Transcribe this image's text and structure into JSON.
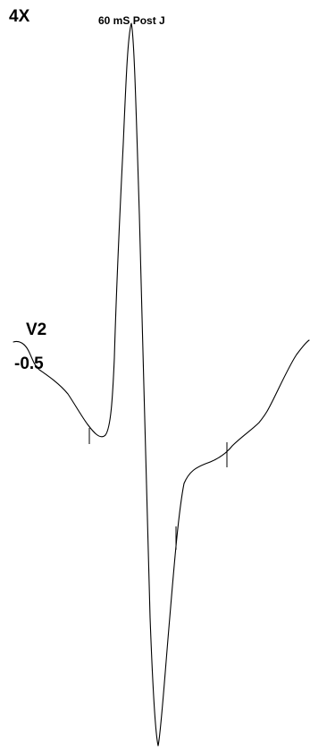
{
  "header": {
    "gain_label": "4X",
    "measure_label": "60 mS Post J"
  },
  "lead": {
    "name": "V2",
    "value": "-0.5"
  },
  "colors": {
    "trace": "#000000",
    "background": "#ffffff"
  }
}
